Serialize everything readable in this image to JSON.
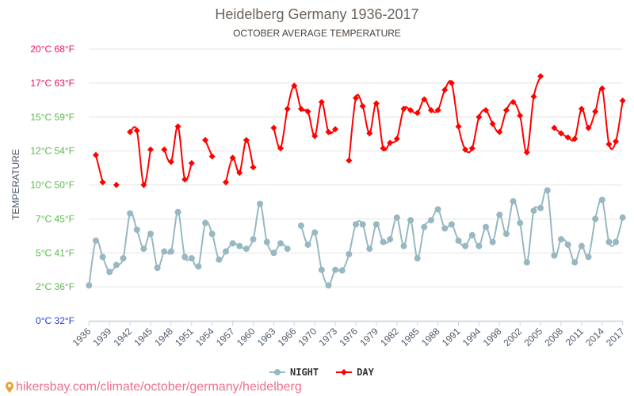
{
  "chart_data": {
    "type": "line",
    "title": "Heidelberg Germany 1936-2017",
    "subtitle": "OCTOBER AVERAGE TEMPERATURE",
    "ylabel": "TEMPERATURE",
    "ylim": [
      0,
      20
    ],
    "y_ticks": [
      {
        "value": 0,
        "label": "0°C 32°F",
        "color": "#1f3ee0"
      },
      {
        "value": 2.5,
        "label": "2°C 36°F",
        "color": "#5cb94c"
      },
      {
        "value": 5,
        "label": "5°C 41°F",
        "color": "#5cb94c"
      },
      {
        "value": 7.5,
        "label": "7°C 45°F",
        "color": "#5cb94c"
      },
      {
        "value": 10,
        "label": "10°C 50°F",
        "color": "#5cb94c"
      },
      {
        "value": 12.5,
        "label": "12°C 54°F",
        "color": "#5cb94c"
      },
      {
        "value": 15,
        "label": "15°C 59°F",
        "color": "#5cb94c"
      },
      {
        "value": 17.5,
        "label": "17°C 63°F",
        "color": "#e8175d"
      },
      {
        "value": 20,
        "label": "20°C 68°F",
        "color": "#e8175d"
      }
    ],
    "grid": true,
    "legend_position": "bottom",
    "categories": [
      1936,
      1937,
      1938,
      1939,
      1940,
      1941,
      1942,
      1943,
      1944,
      1945,
      1946,
      1947,
      1948,
      1949,
      1950,
      1951,
      1952,
      1953,
      1954,
      1955,
      1956,
      1957,
      1958,
      1959,
      1960,
      1961,
      1962,
      1963,
      1964,
      1965,
      1966,
      1967,
      1969,
      1970,
      1971,
      1972,
      1973,
      1974,
      1975,
      1976,
      1977,
      1978,
      1979,
      1980,
      1981,
      1982,
      1983,
      1984,
      1985,
      1986,
      1987,
      1988,
      1989,
      1990,
      1991,
      1992,
      1993,
      1994,
      1995,
      1997,
      1998,
      1999,
      2001,
      2002,
      2003,
      2004,
      2005,
      2006,
      2007,
      2008,
      2009,
      2010,
      2011,
      2012,
      2013,
      2014,
      2015,
      2016,
      2017
    ],
    "series": [
      {
        "name": "NIGHT",
        "color": "#97b8c2",
        "marker": "circle",
        "values": [
          2.6,
          5.9,
          4.7,
          3.6,
          4.1,
          4.6,
          7.9,
          6.7,
          5.3,
          6.4,
          3.9,
          5.1,
          5.1,
          8.0,
          4.7,
          4.6,
          4.0,
          7.2,
          6.4,
          4.5,
          5.1,
          5.7,
          5.5,
          5.3,
          6.0,
          8.6,
          5.8,
          5.0,
          5.7,
          5.3,
          null,
          7.0,
          5.6,
          6.5,
          3.75,
          2.6,
          3.75,
          3.7,
          4.9,
          7.1,
          7.1,
          5.3,
          7.1,
          5.8,
          6.0,
          7.6,
          5.5,
          7.4,
          4.6,
          6.9,
          7.4,
          8.2,
          6.8,
          7.1,
          5.9,
          5.5,
          6.3,
          5.5,
          6.9,
          5.8,
          7.8,
          6.4,
          8.8,
          7.2,
          4.3,
          8.1,
          8.3,
          9.6,
          4.8,
          6.0,
          5.6,
          4.3,
          5.5,
          4.7,
          7.5,
          8.9,
          5.8,
          5.8,
          7.6
        ]
      },
      {
        "name": "DAY",
        "color": "#ff0000",
        "marker": "diamond",
        "values": [
          null,
          12.2,
          10.2,
          null,
          10.0,
          null,
          13.9,
          14.0,
          10.0,
          12.6,
          null,
          12.6,
          11.7,
          14.3,
          10.4,
          11.6,
          null,
          13.3,
          12.1,
          null,
          10.2,
          12.0,
          10.9,
          13.3,
          11.3,
          null,
          null,
          14.2,
          12.7,
          15.6,
          17.3,
          15.6,
          15.4,
          13.6,
          16.1,
          13.9,
          14.1,
          null,
          11.8,
          16.4,
          15.8,
          13.8,
          16.0,
          12.7,
          13.1,
          13.4,
          15.6,
          15.5,
          15.3,
          16.3,
          15.5,
          15.5,
          17.0,
          17.5,
          14.3,
          12.6,
          12.7,
          15.0,
          15.5,
          14.5,
          13.9,
          15.5,
          16.1,
          15.1,
          12.4,
          16.5,
          18.0,
          null,
          14.2,
          13.8,
          13.5,
          13.4,
          15.6,
          14.2,
          15.4,
          17.1,
          13.0,
          13.2,
          16.2
        ]
      }
    ]
  },
  "footer": {
    "url": "hikersbay.com/climate/october/germany/heidelberg",
    "icon": "map-pin-icon"
  }
}
